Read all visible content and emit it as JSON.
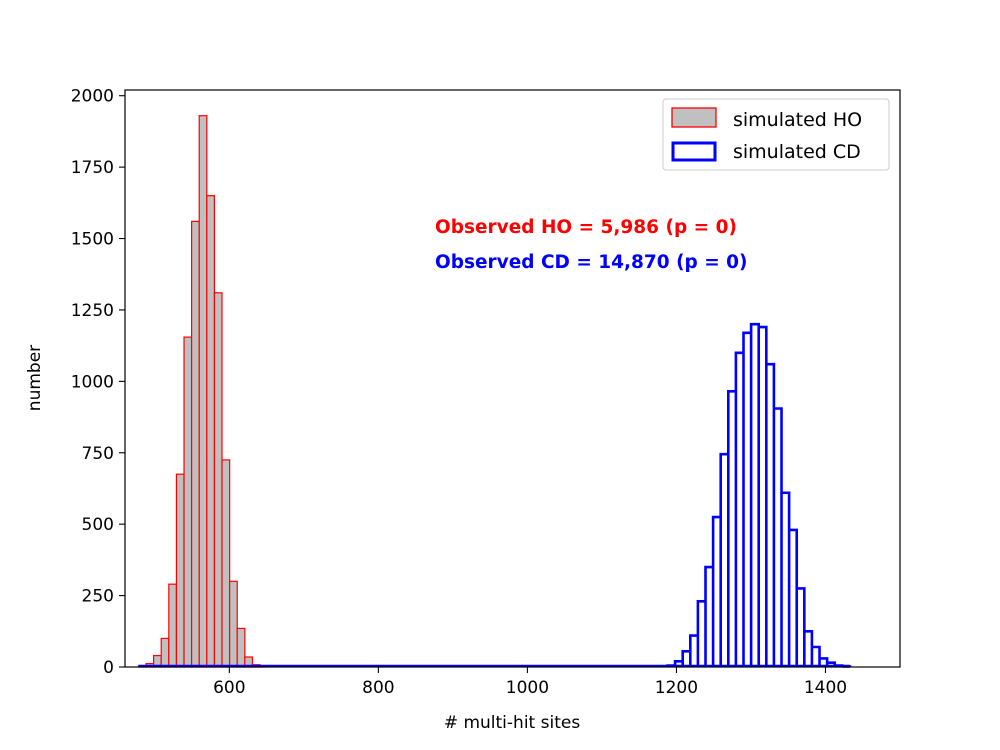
{
  "chart_data": {
    "type": "bar",
    "xlabel": "# multi-hit sites",
    "ylabel": "number",
    "xlim": [
      460,
      1500
    ],
    "ylim": [
      0,
      2020
    ],
    "xticks": [
      600,
      800,
      1000,
      1200,
      1400
    ],
    "yticks": [
      0,
      250,
      500,
      750,
      1000,
      1250,
      1500,
      1750,
      2000
    ],
    "grid": false,
    "legend_position": "top-right",
    "series": [
      {
        "name": "simulated HO",
        "style": "filled",
        "face_color": "#c0c0c0",
        "edge_color": "#ff0000",
        "bin_width": 10.2,
        "bin_starts": [
          478,
          488.2,
          498.4,
          508.6,
          518.8,
          529,
          539.2,
          549.4,
          559.6,
          569.8,
          580,
          590.2,
          600.4,
          610.6,
          620.8,
          631,
          641.2
        ],
        "values": [
          3,
          12,
          40,
          100,
          290,
          675,
          1155,
          1560,
          1930,
          1650,
          1310,
          725,
          300,
          135,
          35,
          8,
          2
        ]
      },
      {
        "name": "simulated CD",
        "style": "step",
        "face_color": "none",
        "edge_color": "#0000ff",
        "bin_width": 10.2,
        "bin_starts": [
          1188,
          1198.2,
          1208.4,
          1218.6,
          1228.8,
          1239,
          1249.2,
          1259.4,
          1269.6,
          1279.8,
          1290,
          1300.2,
          1310.4,
          1320.6,
          1330.8,
          1341,
          1351.2,
          1361.4,
          1371.6,
          1381.8,
          1392,
          1402.2,
          1412.4,
          1422.6
        ],
        "values": [
          5,
          20,
          55,
          110,
          230,
          350,
          525,
          745,
          965,
          1100,
          1170,
          1200,
          1190,
          1060,
          905,
          610,
          480,
          275,
          125,
          70,
          30,
          15,
          5,
          2
        ]
      }
    ],
    "annotations": [
      {
        "text": "Observed HO = 5,986 (p = 0)",
        "color": "#ff0000"
      },
      {
        "text": "Observed CD = 14,870 (p = 0)",
        "color": "#0000ff"
      }
    ]
  }
}
